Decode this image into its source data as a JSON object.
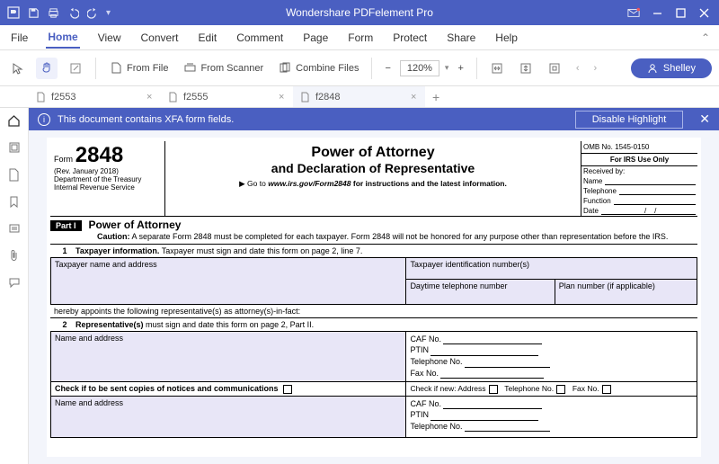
{
  "app": {
    "title": "Wondershare PDFelement Pro"
  },
  "menu": {
    "items": [
      "File",
      "Home",
      "View",
      "Convert",
      "Edit",
      "Comment",
      "Page",
      "Form",
      "Protect",
      "Share",
      "Help"
    ],
    "active": "Home"
  },
  "toolbar": {
    "from_file": "From File",
    "from_scanner": "From Scanner",
    "combine": "Combine Files",
    "zoom_value": "120%",
    "user": "Shelley"
  },
  "tabs": {
    "items": [
      {
        "label": "f2553",
        "active": false
      },
      {
        "label": "f2555",
        "active": false
      },
      {
        "label": "f2848",
        "active": true
      }
    ]
  },
  "infobar": {
    "text": "This document contains XFA form fields.",
    "button": "Disable Highlight"
  },
  "form": {
    "form_word": "Form",
    "form_number": "2848",
    "rev": "(Rev. January 2018)",
    "dept1": "Department of the Treasury",
    "dept2": "Internal Revenue Service",
    "title1": "Power of Attorney",
    "title2": "and Declaration of Representative",
    "goto_prefix": "▶ Go to ",
    "goto_url": "www.irs.gov/Form2848",
    "goto_suffix": " for instructions and the latest information.",
    "omb": "OMB No. 1545-0150",
    "irs_use": "For IRS Use Only",
    "received": "Received by:",
    "name_lbl": "Name",
    "tel_lbl": "Telephone",
    "func_lbl": "Function",
    "date_lbl": "Date",
    "part1": "Part I",
    "part1_title": "Power of Attorney",
    "caution_lbl": "Caution:",
    "caution_text": " A separate Form 2848 must be completed for each taxpayer. Form 2848 will not be honored for any purpose other than representation before the IRS.",
    "sec1_num": "1",
    "sec1_title": "Taxpayer information.",
    "sec1_rest": " Taxpayer must sign and date this form on page 2, line 7.",
    "tp_name": "Taxpayer name and address",
    "tp_id": "Taxpayer identification number(s)",
    "tp_phone": "Daytime telephone number",
    "tp_plan": "Plan number (if applicable)",
    "appoints": "hereby appoints the following representative(s) as attorney(s)-in-fact:",
    "sec2_num": "2",
    "sec2_title": "Representative(s)",
    "sec2_rest": " must sign and date this form on page 2, Part II.",
    "rep_name": "Name and address",
    "caf": "CAF No.",
    "ptin": "PTIN",
    "telno": "Telephone No.",
    "faxno": "Fax No.",
    "check_copies": "Check if to be sent copies of notices and communications",
    "check_new": "Check if new: Address",
    "telno2": "Telephone No.",
    "faxno2": "Fax No."
  },
  "colors": {
    "brand": "#4a5fc1",
    "field_fill": "#e8e6f7",
    "border": "#e0e0e0"
  }
}
